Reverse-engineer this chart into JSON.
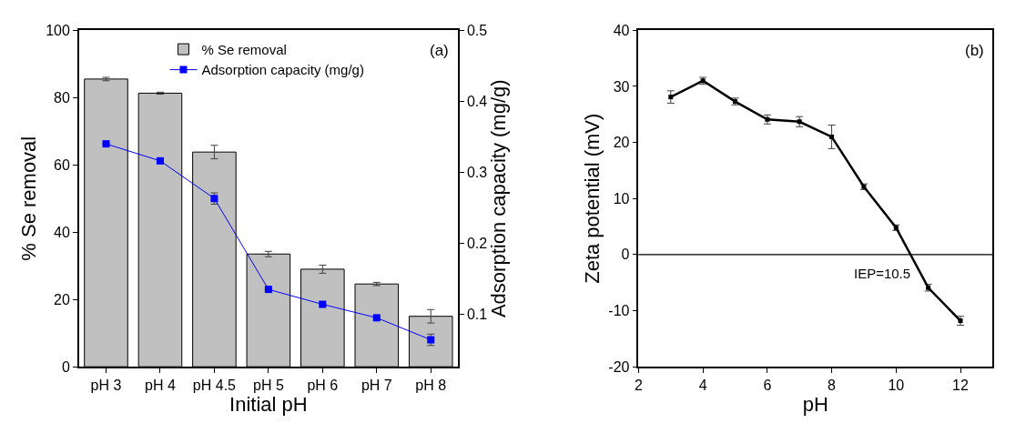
{
  "chart_data": [
    {
      "type": "bar",
      "categories": [
        "pH 3",
        "pH 4",
        "pH 4.5",
        "pH 5",
        "pH 6",
        "pH 7",
        "pH 8"
      ],
      "series": [
        {
          "name": "% Se removal",
          "color": "#c0c0c0",
          "values": [
            85.5,
            81.3,
            63.8,
            33.5,
            29.0,
            24.6,
            15.0
          ],
          "errors": [
            0.5,
            0.3,
            2,
            0.8,
            1.2,
            0.5,
            2
          ]
        },
        {
          "name": "Adsorption capacity (mg/g)",
          "type": "line",
          "axis": "y2",
          "color": "#0000ff",
          "marker": "square",
          "values": [
            0.34,
            0.316,
            0.263,
            0.135,
            0.114,
            0.095,
            0.064
          ],
          "errors": [
            null,
            null,
            0.008,
            null,
            null,
            null,
            0.008
          ]
        }
      ],
      "xlabel": "Initial pH",
      "ylabel": "% Se removal",
      "y2label": "Adsorption capacity (mg/g)",
      "ylim": [
        0,
        100
      ],
      "yticks": [
        0,
        20,
        40,
        60,
        80,
        100
      ],
      "y2lim": [
        0.026,
        0.5
      ],
      "y2ticks": [
        0.1,
        0.2,
        0.3,
        0.4,
        0.5
      ],
      "legend": "top",
      "annotations": [
        "(a)"
      ]
    },
    {
      "type": "line",
      "x": [
        3,
        4,
        5,
        6,
        7,
        8,
        9,
        10,
        11,
        12
      ],
      "marker": "square",
      "series": [
        {
          "color": "#000000",
          "values": [
            28.1,
            31.0,
            27.3,
            24.1,
            23.7,
            21.0,
            12.1,
            4.8,
            -5.9,
            -11.8
          ],
          "errors": [
            1.1,
            0.6,
            0.6,
            0.8,
            0.9,
            2.1,
            0.5,
            0.5,
            0.6,
            0.8
          ]
        }
      ],
      "xlabel": "pH",
      "ylabel": "Zeta potential (mV)",
      "xlim": [
        2,
        13
      ],
      "xticks": [
        2,
        4,
        6,
        8,
        10,
        12
      ],
      "ylim": [
        -20,
        40
      ],
      "yticks": [
        -20,
        -10,
        0,
        10,
        20,
        30,
        40
      ],
      "ref_lines": [
        {
          "axis": "y",
          "value": 0,
          "color": "#000000"
        }
      ],
      "annotations": [
        "(b)",
        {
          "text": "IEP=10.5",
          "x": 10.5,
          "y": 0
        }
      ]
    }
  ]
}
